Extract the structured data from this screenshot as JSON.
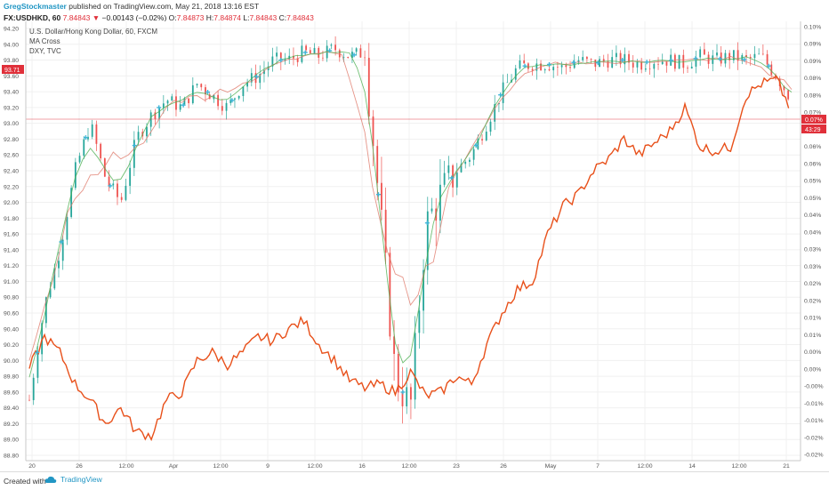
{
  "header": {
    "author": "GregStockmaster",
    "published": "published on TradingView.com, May 21, 2018 13:16 EST",
    "symbol": "FX:USDHKD, 60",
    "last": "7.84843",
    "change": "−0.00143 (−0.02%)",
    "o_label": "O:",
    "o_value": "7.84873",
    "h_label": "H:",
    "h_value": "7.84874",
    "l_label": "L:",
    "l_value": "7.84843",
    "c_label": "C:",
    "c_value": "7.84843"
  },
  "legend": {
    "line1": "U.S. Dollar/Hong Kong Dollar, 60, FXCM",
    "line2": "MA Cross",
    "line3": "DXY, TVC"
  },
  "footer": {
    "created_with": "Created with",
    "brand": "TradingView"
  },
  "colors": {
    "up": "#26a69a",
    "down": "#ef5350",
    "dxy": "#e8501a",
    "ma_fast": "#4caf50",
    "ma_slow": "#e07a6b",
    "cross": "#3fb5d8",
    "badge": "#e0303a"
  },
  "chart_data": {
    "type": "line",
    "left_axis": {
      "ticks": [
        "94.20",
        "94.00",
        "93.80",
        "93.60",
        "93.40",
        "93.20",
        "93.00",
        "92.80",
        "92.60",
        "92.40",
        "92.20",
        "92.00",
        "91.80",
        "91.60",
        "91.40",
        "91.20",
        "91.00",
        "90.80",
        "90.60",
        "90.40",
        "90.20",
        "90.00",
        "89.80",
        "89.60",
        "89.40",
        "89.20",
        "89.00",
        "88.80"
      ],
      "range": [
        88.8,
        94.2
      ],
      "badge": "93.71"
    },
    "right_axis": {
      "ticks": [
        "0.10%",
        "0.09%",
        "0.09%",
        "0.08%",
        "0.08%",
        "0.07%",
        "0.07%",
        "0.06%",
        "0.06%",
        "0.05%",
        "0.05%",
        "0.04%",
        "0.04%",
        "0.03%",
        "0.03%",
        "0.02%",
        "0.02%",
        "0.01%",
        "0.01%",
        "0.00%",
        "0.00%",
        "-0.00%",
        "-0.01%",
        "-0.01%",
        "-0.02%",
        "-0.02%"
      ],
      "badge_value": "0.07%",
      "badge_time": "43:29",
      "current_level": 0.07
    },
    "x_ticks": [
      "20",
      "26",
      "12:00",
      "Apr",
      "12:00",
      "9",
      "12:00",
      "16",
      "12:00",
      "23",
      "26",
      "May",
      "7",
      "12:00",
      "14",
      "12:00",
      "21"
    ],
    "series": [
      {
        "name": "DXY, TVC",
        "x": [
          0,
          2,
          4,
          6,
          8,
          10,
          12,
          14,
          16,
          18,
          20,
          22,
          24,
          26,
          28,
          30,
          32,
          34,
          36,
          38,
          40,
          42,
          44,
          46,
          48,
          50,
          52,
          54,
          56,
          58,
          60,
          62,
          64,
          66,
          68,
          70,
          72,
          74,
          76,
          78,
          80,
          82,
          84,
          86,
          88,
          90,
          92,
          94,
          96,
          98,
          100
        ],
        "values": [
          89.9,
          90.3,
          90.1,
          89.7,
          89.5,
          89.2,
          89.4,
          89.1,
          89.05,
          89.5,
          89.6,
          90.0,
          90.1,
          89.95,
          90.1,
          90.3,
          90.25,
          90.4,
          90.5,
          90.2,
          90.0,
          89.75,
          89.65,
          89.7,
          89.6,
          89.85,
          89.55,
          89.6,
          89.8,
          89.7,
          90.2,
          90.6,
          90.9,
          91.0,
          91.6,
          91.95,
          92.1,
          92.4,
          92.55,
          92.8,
          92.6,
          92.75,
          92.9,
          93.2,
          92.7,
          92.65,
          92.7,
          93.35,
          93.5,
          93.55,
          93.15
        ]
      },
      {
        "name": "U.S. Dollar/Hong Kong Dollar, 60, FXCM",
        "x": [
          0,
          2,
          4,
          6,
          8,
          10,
          12,
          14,
          16,
          18,
          20,
          22,
          24,
          26,
          28,
          30,
          32,
          34,
          36,
          38,
          40,
          42,
          44,
          46,
          48,
          50,
          52,
          54,
          56,
          58,
          60,
          62,
          64,
          66,
          68,
          70,
          72,
          74,
          76,
          78,
          80,
          82,
          84,
          86,
          88,
          90,
          92,
          94,
          96,
          98,
          100
        ],
        "values": [
          89.5,
          90.7,
          91.4,
          92.4,
          93.0,
          92.3,
          92.0,
          92.8,
          93.1,
          93.3,
          93.2,
          93.5,
          93.35,
          93.2,
          93.5,
          93.6,
          93.8,
          93.8,
          93.9,
          93.85,
          93.95,
          93.85,
          93.9,
          91.9,
          89.8,
          89.4,
          91.7,
          92.1,
          92.4,
          92.6,
          93.0,
          93.4,
          93.7,
          93.75,
          93.75,
          93.7,
          93.8,
          93.75,
          93.8,
          93.8,
          93.75,
          93.8,
          93.8,
          93.75,
          93.85,
          93.8,
          93.85,
          93.8,
          93.85,
          93.6,
          93.3
        ]
      }
    ]
  }
}
